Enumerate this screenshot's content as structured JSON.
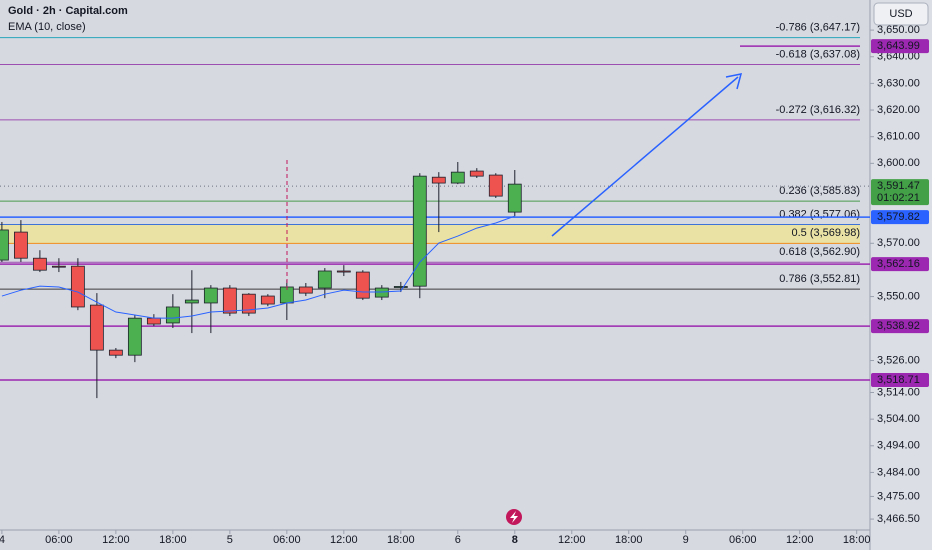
{
  "chart_data": {
    "type": "candlestick",
    "title": "Gold · 2h · Capital.com",
    "subtitle": "EMA (10, close)",
    "currency": "USD",
    "open": [
      3563.7,
      3574.2,
      3564.4,
      3561.4,
      3561.4,
      3546.8,
      3529.9,
      3528.0,
      3541.9,
      3540.1,
      3547.6,
      3547.6,
      3553.2,
      3550.9,
      3550.2,
      3547.6,
      3553.6,
      3553.2,
      3559.6,
      3559.2,
      3549.8,
      3553.4,
      3553.9,
      3594.8,
      3592.6,
      3597.1,
      3595.6,
      3581.7
    ],
    "high": [
      3578.0,
      3578.7,
      3567.4,
      3564.4,
      3564.4,
      3551.3,
      3530.7,
      3543.1,
      3543.4,
      3550.9,
      3559.9,
      3554.3,
      3554.3,
      3551.3,
      3550.9,
      3556.2,
      3555.1,
      3560.7,
      3561.8,
      3559.9,
      3554.3,
      3555.5,
      3596.3,
      3596.7,
      3600.5,
      3598.2,
      3596.3,
      3597.5
    ],
    "low": [
      3563.0,
      3563.0,
      3559.2,
      3559.2,
      3544.9,
      3511.9,
      3526.9,
      3525.4,
      3538.9,
      3538.2,
      3536.3,
      3536.3,
      3542.7,
      3542.7,
      3546.4,
      3541.2,
      3550.2,
      3549.4,
      3557.7,
      3548.7,
      3548.7,
      3551.7,
      3549.4,
      3574.2,
      3592.2,
      3594.5,
      3587.0,
      3580.2
    ],
    "close": [
      3575.0,
      3564.4,
      3559.9,
      3561.1,
      3546.1,
      3529.9,
      3528.0,
      3541.9,
      3539.7,
      3546.1,
      3548.7,
      3553.2,
      3543.8,
      3543.8,
      3547.2,
      3553.6,
      3551.3,
      3559.6,
      3559.2,
      3549.4,
      3553.2,
      3553.8,
      3595.2,
      3592.6,
      3596.7,
      3595.2,
      3587.7,
      3592.2
    ],
    "up_color": "#4caf50",
    "down_color": "#ef5350",
    "ema": {
      "color": "#2962ff",
      "values": [
        3550.2,
        3552.4,
        3553.9,
        3553.6,
        3551.7,
        3547.9,
        3544.2,
        3543.1,
        3541.9,
        3541.9,
        3542.7,
        3544.2,
        3544.6,
        3545.0,
        3545.7,
        3547.6,
        3548.7,
        3550.9,
        3552.4,
        3551.7,
        3551.7,
        3552.1,
        3562.9,
        3570.1,
        3572.7,
        3575.7,
        3577.6,
        3580.2
      ]
    },
    "ylim": [
      3462.4,
      3661.3
    ],
    "yticks": [
      {
        "value": 3650,
        "label": "3,650.00"
      },
      {
        "value": 3640,
        "label": "3,640.00"
      },
      {
        "value": 3630,
        "label": "3,630.00"
      },
      {
        "value": 3620,
        "label": "3,620.00"
      },
      {
        "value": 3610,
        "label": "3,610.00"
      },
      {
        "value": 3600,
        "label": "3,600.00"
      },
      {
        "value": 3570,
        "label": "3,570.00"
      },
      {
        "value": 3550,
        "label": "3,550.00"
      },
      {
        "value": 3526,
        "label": "3,526.00"
      },
      {
        "value": 3514,
        "label": "3,514.00"
      },
      {
        "value": 3504,
        "label": "3,504.00"
      },
      {
        "value": 3494,
        "label": "3,494.00"
      },
      {
        "value": 3484,
        "label": "3,484.00"
      },
      {
        "value": 3475,
        "label": "3,475.00"
      },
      {
        "value": 3466.5,
        "label": "3,466.50"
      }
    ],
    "xlim": [
      -0.1,
      45.7
    ],
    "xticks": [
      {
        "value": 0,
        "label": "4"
      },
      {
        "value": 3,
        "label": "06:00"
      },
      {
        "value": 6,
        "label": "12:00"
      },
      {
        "value": 9,
        "label": "18:00"
      },
      {
        "value": 12,
        "label": "5"
      },
      {
        "value": 15,
        "label": "06:00"
      },
      {
        "value": 18,
        "label": "12:00"
      },
      {
        "value": 21,
        "label": "18:00"
      },
      {
        "value": 24,
        "label": "6"
      },
      {
        "value": 27,
        "label": "8"
      },
      {
        "value": 30,
        "label": "12:00"
      },
      {
        "value": 33,
        "label": "18:00"
      },
      {
        "value": 36,
        "label": "9"
      },
      {
        "value": 39,
        "label": "06:00"
      },
      {
        "value": 42,
        "label": "12:00"
      },
      {
        "value": 45,
        "label": "18:00"
      }
    ],
    "fib_levels": [
      {
        "label": "-0.786 (3,647.17)",
        "value": 3647.17,
        "color": "#26a6b8"
      },
      {
        "label": "-0.618 (3,637.08)",
        "value": 3637.08,
        "color": "#9c4fb0"
      },
      {
        "label": "-0.272 (3,616.32)",
        "value": 3616.32,
        "color": "#9c4fb0"
      },
      {
        "label": "0.236 (3,585.83)",
        "value": 3585.83,
        "color": "#4a9a4e"
      },
      {
        "label": "0.382 (3,577.06)",
        "value": 3577.06,
        "color": "#3f72d8"
      },
      {
        "label": "0.5 (3,569.98)",
        "value": 3569.98,
        "color": "#f08c1a"
      },
      {
        "label": "0.618 (3,562.90)",
        "value": 3562.9,
        "color": "#9c4fb0"
      },
      {
        "label": "0.786 (3,552.81)",
        "value": 3552.81,
        "color": "#3c3c3c"
      }
    ],
    "price_tags": [
      {
        "label": "3,643.99",
        "value": 3643.99,
        "color": "#9c27b0"
      },
      {
        "label": "3,591.47",
        "value": 3591.47,
        "color": "#43a047",
        "countdown": "01:02:21"
      },
      {
        "label": "3,579.82",
        "value": 3579.82,
        "color": "#2962ff"
      },
      {
        "label": "3,562.16",
        "value": 3562.16,
        "color": "#9c27b0"
      },
      {
        "label": "3,538.92",
        "value": 3538.92,
        "color": "#9c27b0"
      },
      {
        "label": "3,518.71",
        "value": 3518.71,
        "color": "#9c27b0"
      }
    ]
  }
}
